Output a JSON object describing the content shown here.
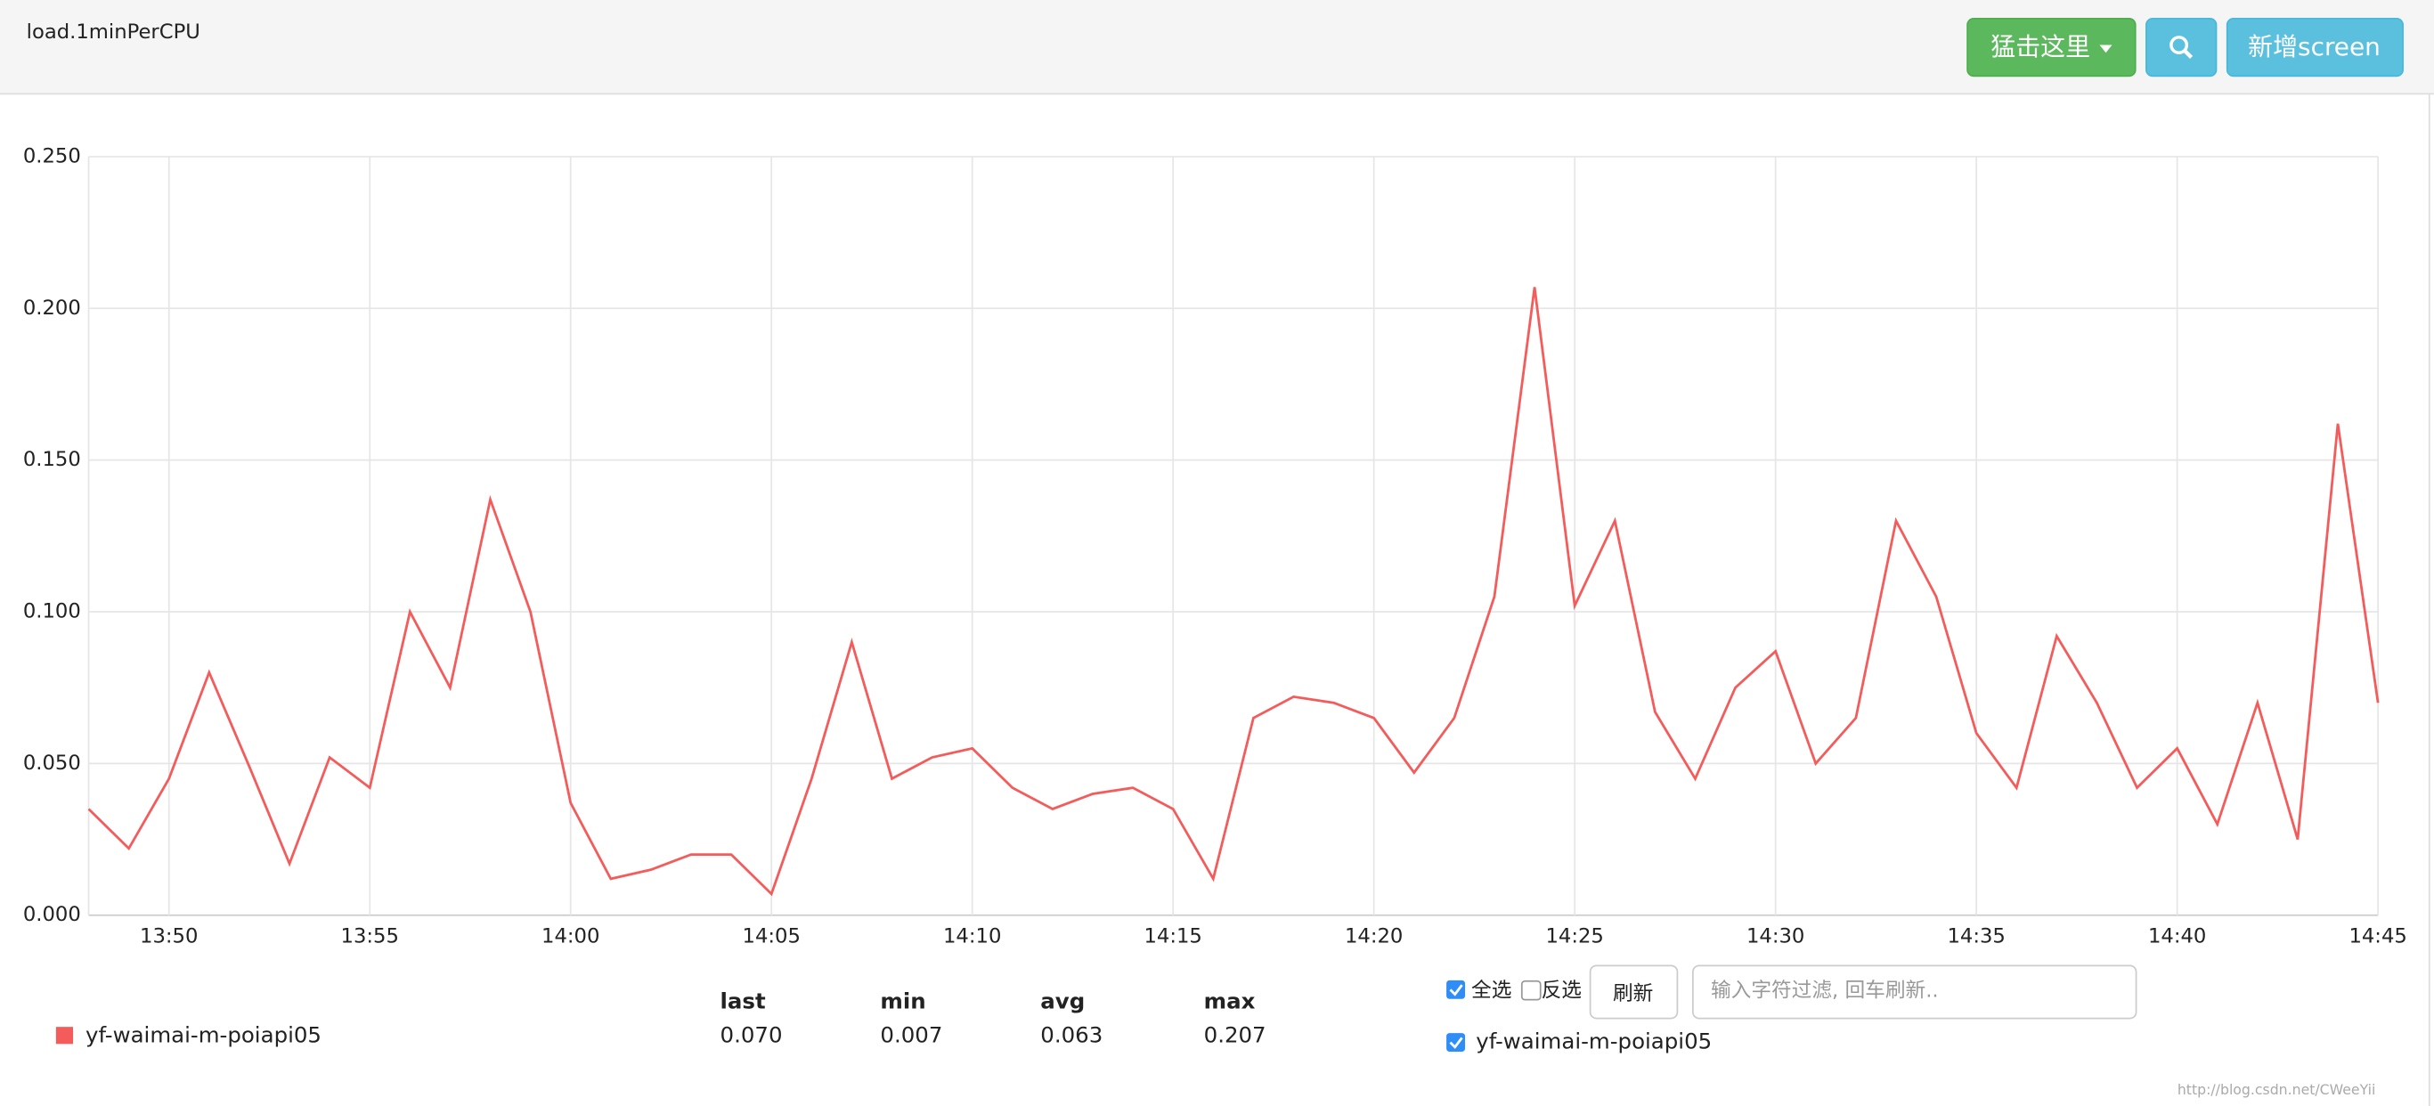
{
  "header": {
    "title": "load.1minPerCPU",
    "buttons": [
      "猛击这里",
      "新增screen"
    ]
  },
  "chart_data": {
    "type": "line",
    "x": [
      828,
      829,
      830,
      831,
      832,
      833,
      834,
      835,
      836,
      837,
      838,
      839,
      840,
      841,
      842,
      843,
      844,
      845,
      846,
      847,
      848,
      849,
      850,
      851,
      852,
      853,
      854,
      855,
      856,
      857,
      858,
      859,
      860,
      861,
      862,
      863,
      864,
      865,
      866,
      867,
      868,
      869,
      870,
      871,
      872,
      873,
      874,
      875,
      876,
      877,
      878,
      879,
      880,
      881,
      882,
      883,
      884,
      885
    ],
    "series": [
      {
        "name": "yf-waimai-m-poiapi05",
        "color": "#f45b5b",
        "values": [
          0.035,
          0.022,
          0.045,
          0.08,
          0.049,
          0.017,
          0.052,
          0.042,
          0.1,
          0.075,
          0.137,
          0.1,
          0.037,
          0.012,
          0.015,
          0.02,
          0.02,
          0.007,
          0.045,
          0.09,
          0.045,
          0.052,
          0.055,
          0.042,
          0.035,
          0.04,
          0.042,
          0.035,
          0.012,
          0.065,
          0.072,
          0.07,
          0.065,
          0.047,
          0.065,
          0.105,
          0.207,
          0.102,
          0.13,
          0.067,
          0.045,
          0.075,
          0.087,
          0.05,
          0.065,
          0.13,
          0.105,
          0.06,
          0.042,
          0.092,
          0.07,
          0.042,
          0.055,
          0.03,
          0.07,
          0.025,
          0.162,
          0.07
        ]
      }
    ],
    "xlim": [
      828,
      885
    ],
    "xticks": [
      {
        "value": 830,
        "label": "13:50"
      },
      {
        "value": 835,
        "label": "13:55"
      },
      {
        "value": 840,
        "label": "14:00"
      },
      {
        "value": 845,
        "label": "14:05"
      },
      {
        "value": 850,
        "label": "14:10"
      },
      {
        "value": 855,
        "label": "14:15"
      },
      {
        "value": 860,
        "label": "14:20"
      },
      {
        "value": 865,
        "label": "14:25"
      },
      {
        "value": 870,
        "label": "14:30"
      },
      {
        "value": 875,
        "label": "14:35"
      },
      {
        "value": 880,
        "label": "14:40"
      },
      {
        "value": 885,
        "label": "14:45"
      }
    ],
    "ylim": [
      0,
      0.25
    ],
    "yticks": [
      {
        "value": 0,
        "label": "0.000"
      },
      {
        "value": 0.05,
        "label": "0.050"
      },
      {
        "value": 0.1,
        "label": "0.100"
      },
      {
        "value": 0.15,
        "label": "0.150"
      },
      {
        "value": 0.2,
        "label": "0.200"
      },
      {
        "value": 0.25,
        "label": "0.250"
      }
    ],
    "grid": true
  },
  "summary": {
    "columns": [
      "last",
      "min",
      "avg",
      "max"
    ],
    "values": [
      "0.070",
      "0.007",
      "0.063",
      "0.207"
    ]
  },
  "controls": {
    "select_all": "全选",
    "invert": "反选",
    "refresh": "刷新",
    "filter_placeholder": "输入字符过滤, 回车刷新.."
  },
  "watermark": "http://blog.csdn.net/CWeeYii"
}
